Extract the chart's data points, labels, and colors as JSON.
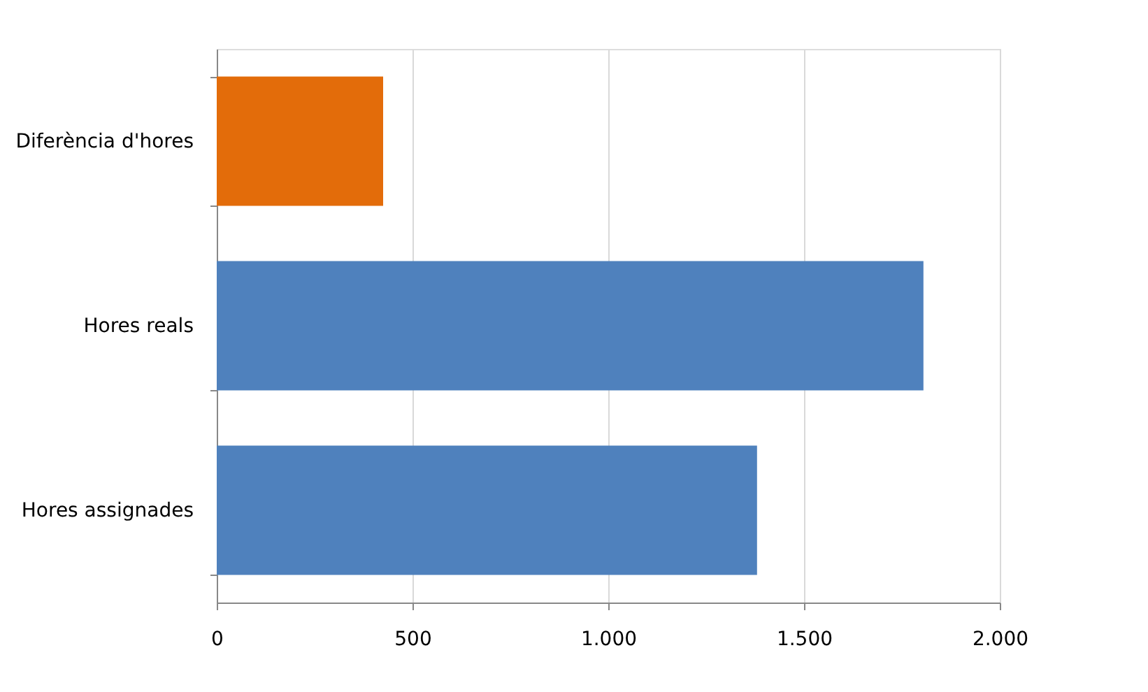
{
  "chart_data": {
    "type": "bar",
    "orientation": "horizontal",
    "categories": [
      "Diferència d'hores",
      "Hores reals",
      "Hores assignades"
    ],
    "values": [
      425,
      1805,
      1380
    ],
    "colors": [
      "#e36c0a",
      "#4f81bd",
      "#4f81bd"
    ],
    "xlim": [
      0,
      2000
    ],
    "xticks": [
      0,
      500,
      {
        "value": 1000,
        "label": "1.000"
      },
      {
        "value": 1500,
        "label": "1.500"
      },
      {
        "value": 2000,
        "label": "2.000"
      }
    ],
    "grid": "x"
  }
}
